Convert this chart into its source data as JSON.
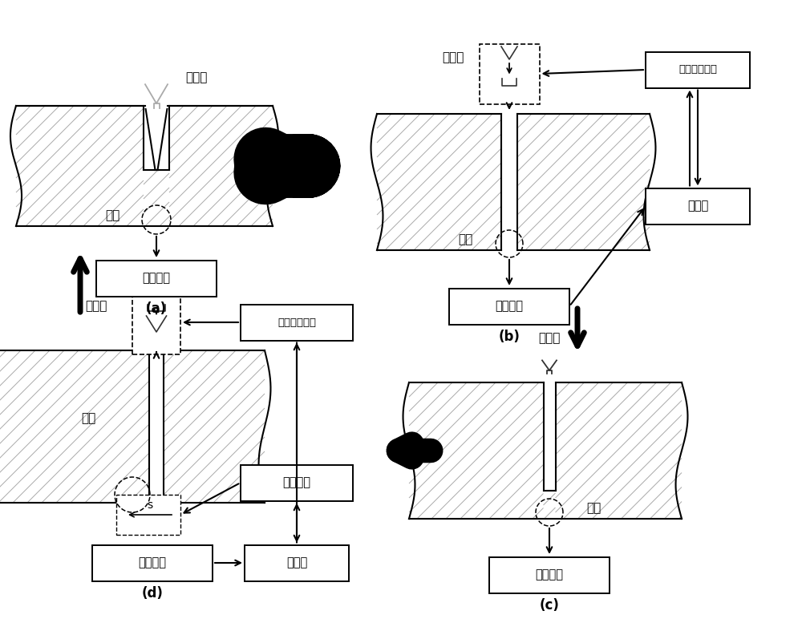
{
  "bg_color": "#ffffff",
  "label_a": "(a)",
  "label_b": "(b)",
  "label_c": "(c)",
  "label_d": "(d)",
  "laser": "激光束",
  "target": "靶材",
  "monitor": "监测装置",
  "beam_shaping": "光束整形系统",
  "controller": "控制器",
  "motion": "运动系统",
  "s_label": "s"
}
